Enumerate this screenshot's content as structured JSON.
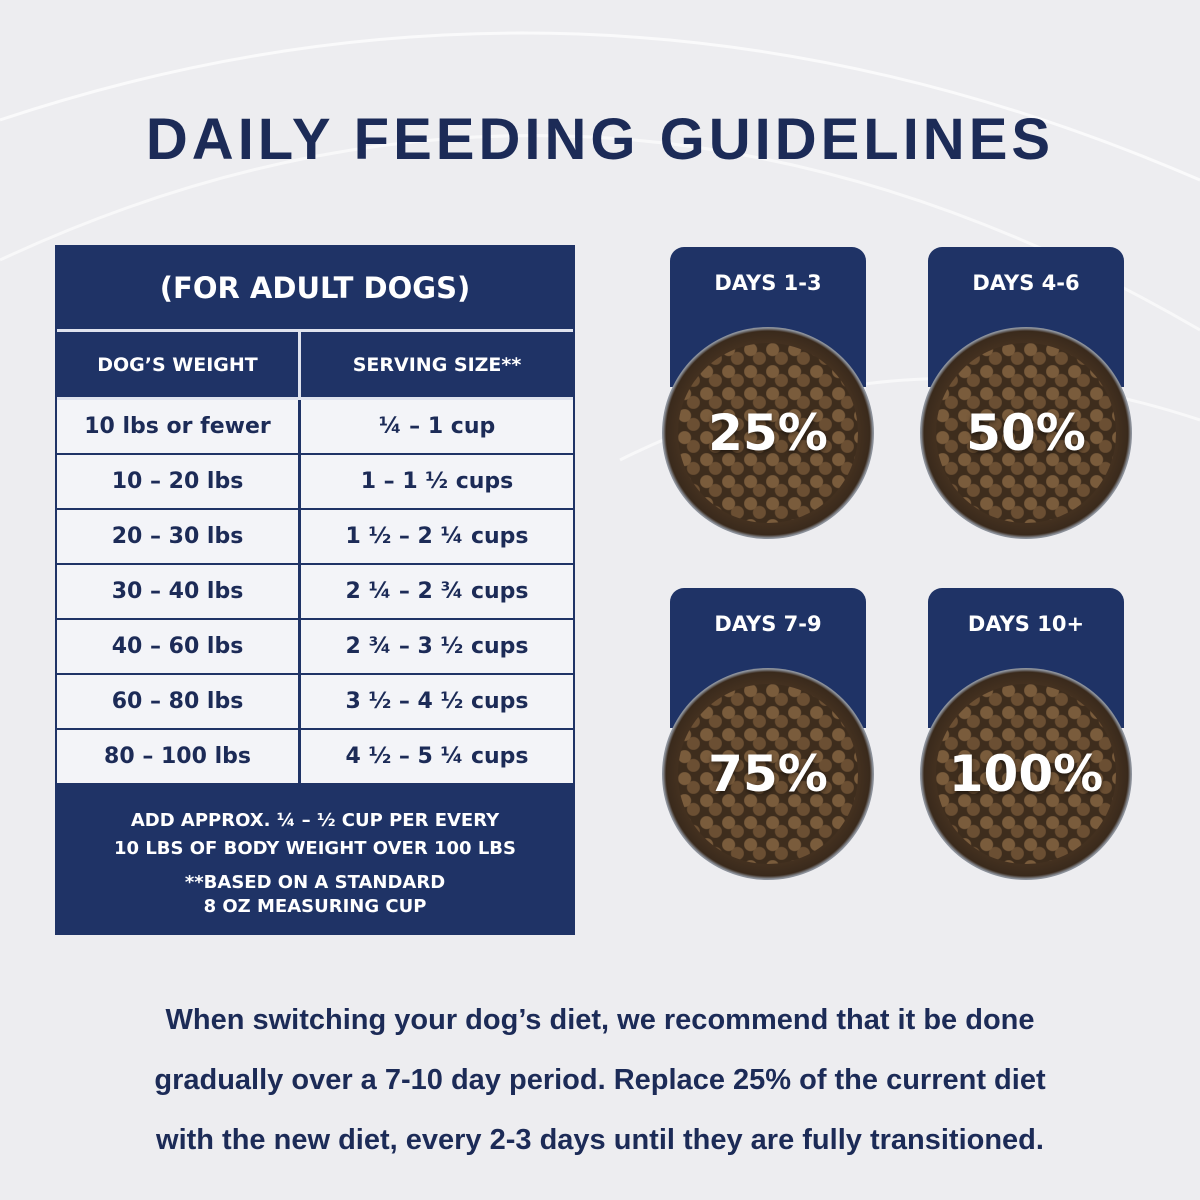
{
  "title": "DAILY FEEDING GUIDELINES",
  "table": {
    "caption": "(FOR ADULT DOGS)",
    "headers": [
      "DOG’S WEIGHT",
      "SERVING SIZE**"
    ],
    "rows": [
      [
        "10 lbs or fewer",
        "¼ – 1 cup"
      ],
      [
        "10 – 20 lbs",
        "1 – 1 ½ cups"
      ],
      [
        "20 – 30 lbs",
        "1 ½ – 2 ¼ cups"
      ],
      [
        "30 – 40 lbs",
        "2 ¼ – 2 ¾ cups"
      ],
      [
        "40 – 60 lbs",
        "2 ¾ – 3 ½ cups"
      ],
      [
        "60 – 80 lbs",
        "3 ½ – 4 ½ cups"
      ],
      [
        "80 – 100 lbs",
        "4 ½ – 5 ¼ cups"
      ]
    ],
    "note1_line1": "ADD APPROX. ¼ – ½ CUP PER EVERY",
    "note1_line2": "10 LBS OF BODY WEIGHT OVER 100 LBS",
    "note2_line1": "**BASED ON A STANDARD",
    "note2_line2": "8 OZ MEASURING CUP"
  },
  "transition": [
    {
      "label": "DAYS 1-3",
      "percent": "25%"
    },
    {
      "label": "DAYS 4-6",
      "percent": "50%"
    },
    {
      "label": "DAYS 7-9",
      "percent": "75%"
    },
    {
      "label": "DAYS 10+",
      "percent": "100%"
    }
  ],
  "paragraph": [
    "When switching your dog’s diet, we recommend that it be done",
    "gradually over a 7-10 day period. Replace 25% of the current diet",
    "with the new diet, every 2-3 days until they are fully transitioned."
  ]
}
